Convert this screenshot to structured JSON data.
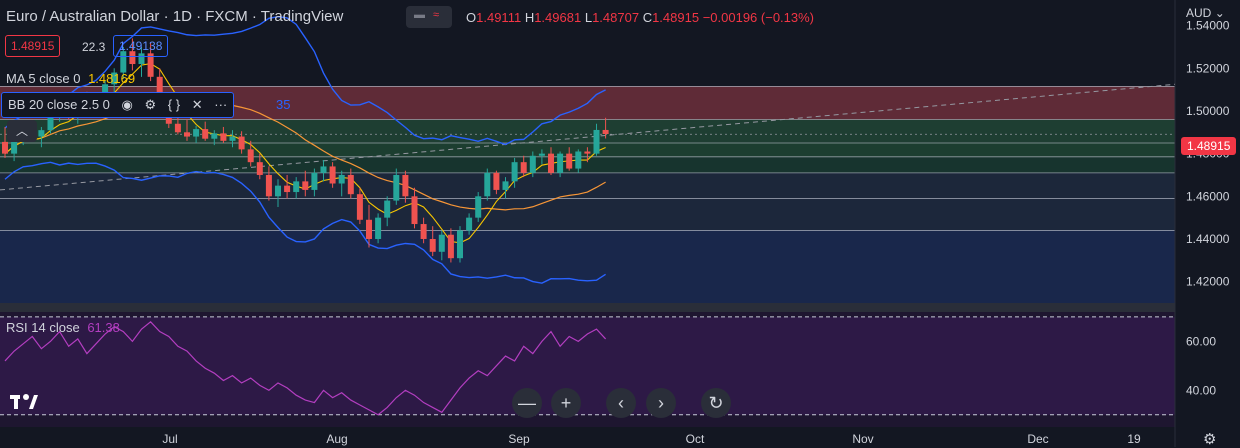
{
  "header": {
    "symbol_title": "Euro / Australian Dollar · 1D · FXCM · TradingView",
    "ohlc": [
      {
        "k": "O",
        "v": "1.49111"
      },
      {
        "k": "H",
        "v": "1.49681"
      },
      {
        "k": "L",
        "v": "1.48707"
      },
      {
        "k": "C",
        "v": "1.48915"
      },
      {
        "k": "",
        "v": "−0.00196 (−0.13%)"
      }
    ]
  },
  "price_boxes": {
    "sell": "1.48915",
    "spread": "22.3",
    "buy": "1.49138"
  },
  "indicators": {
    "ma": {
      "label": "MA 5 close 0",
      "value": "1.48169"
    },
    "bb": {
      "label": "BB 20 close 2.5 0",
      "hidden_value": "35"
    }
  },
  "currency_menu": "AUD",
  "last_price_tag": "1.48915",
  "rsi": {
    "label": "RSI 14 close",
    "value": "61.38"
  },
  "toolbar": {
    "zoom_out": "—",
    "zoom_in": "+",
    "scroll_left": "‹",
    "scroll_right": "›",
    "reset": "↻"
  },
  "colors": {
    "background": "#131722",
    "up": "#26a69a",
    "down": "#ef5350",
    "ma": "#f7c600",
    "ma_line": "#f79637",
    "bb": "#2962ff",
    "rsi": "#b33ec0",
    "accent_blue": "#2962ff"
  },
  "chart_data": {
    "type": "candlestick",
    "x_axis": {
      "tick_labels": [
        "Jul",
        "Aug",
        "Sep",
        "Oct",
        "Nov",
        "Dec",
        "19"
      ]
    },
    "y_axis": {
      "tick_labels": [
        "1.54000",
        "1.52000",
        "1.50000",
        "1.48000",
        "1.46000",
        "1.44000",
        "1.42000"
      ],
      "range": [
        1.41,
        1.552
      ]
    },
    "rsi_axis": {
      "tick_labels": [
        "60.00",
        "40.00"
      ],
      "range": [
        25,
        72
      ]
    },
    "zones": [
      {
        "from": 1.496,
        "to": 1.5115,
        "color": "#6d2f3b"
      },
      {
        "from": 1.485,
        "to": 1.496,
        "color": "#214535"
      },
      {
        "from": 1.4785,
        "to": 1.485,
        "color": "#1f4533"
      },
      {
        "from": 1.471,
        "to": 1.4785,
        "color": "#193a30"
      },
      {
        "from": 1.459,
        "to": 1.471,
        "color": "#1f2a3e"
      },
      {
        "from": 1.444,
        "to": 1.459,
        "color": "#1e2a40"
      },
      {
        "from": 1.41,
        "to": 1.444,
        "color": "#1b2a52"
      }
    ],
    "level_lines": [
      1.5115,
      1.496,
      1.485,
      1.4785,
      1.471,
      1.459,
      1.444
    ],
    "candles": [
      {
        "o": 1.4855,
        "h": 1.4925,
        "l": 1.478,
        "c": 1.48
      },
      {
        "o": 1.48,
        "h": 1.489,
        "l": 1.4765,
        "c": 1.487
      },
      {
        "o": 1.487,
        "h": 1.492,
        "l": 1.484,
        "c": 1.4905
      },
      {
        "o": 1.4905,
        "h": 1.496,
        "l": 1.487,
        "c": 1.488
      },
      {
        "o": 1.488,
        "h": 1.4925,
        "l": 1.483,
        "c": 1.491
      },
      {
        "o": 1.491,
        "h": 1.499,
        "l": 1.4895,
        "c": 1.4975
      },
      {
        "o": 1.4975,
        "h": 1.503,
        "l": 1.495,
        "c": 1.501
      },
      {
        "o": 1.501,
        "h": 1.5045,
        "l": 1.496,
        "c": 1.4975
      },
      {
        "o": 1.4975,
        "h": 1.505,
        "l": 1.494,
        "c": 1.504
      },
      {
        "o": 1.504,
        "h": 1.509,
        "l": 1.5,
        "c": 1.502
      },
      {
        "o": 1.502,
        "h": 1.506,
        "l": 1.499,
        "c": 1.5055
      },
      {
        "o": 1.5055,
        "h": 1.514,
        "l": 1.504,
        "c": 1.5125
      },
      {
        "o": 1.5125,
        "h": 1.52,
        "l": 1.508,
        "c": 1.518
      },
      {
        "o": 1.518,
        "h": 1.53,
        "l": 1.515,
        "c": 1.528
      },
      {
        "o": 1.528,
        "h": 1.534,
        "l": 1.519,
        "c": 1.522
      },
      {
        "o": 1.522,
        "h": 1.53,
        "l": 1.516,
        "c": 1.527
      },
      {
        "o": 1.527,
        "h": 1.532,
        "l": 1.514,
        "c": 1.516
      },
      {
        "o": 1.516,
        "h": 1.52,
        "l": 1.503,
        "c": 1.505
      },
      {
        "o": 1.505,
        "h": 1.508,
        "l": 1.492,
        "c": 1.494
      },
      {
        "o": 1.494,
        "h": 1.499,
        "l": 1.489,
        "c": 1.49
      },
      {
        "o": 1.49,
        "h": 1.496,
        "l": 1.486,
        "c": 1.488
      },
      {
        "o": 1.488,
        "h": 1.493,
        "l": 1.485,
        "c": 1.4915
      },
      {
        "o": 1.4915,
        "h": 1.495,
        "l": 1.486,
        "c": 1.487
      },
      {
        "o": 1.487,
        "h": 1.491,
        "l": 1.484,
        "c": 1.4895
      },
      {
        "o": 1.4895,
        "h": 1.4925,
        "l": 1.485,
        "c": 1.486
      },
      {
        "o": 1.486,
        "h": 1.491,
        "l": 1.483,
        "c": 1.488
      },
      {
        "o": 1.488,
        "h": 1.4905,
        "l": 1.48,
        "c": 1.482
      },
      {
        "o": 1.482,
        "h": 1.486,
        "l": 1.474,
        "c": 1.476
      },
      {
        "o": 1.476,
        "h": 1.48,
        "l": 1.468,
        "c": 1.47
      },
      {
        "o": 1.47,
        "h": 1.474,
        "l": 1.458,
        "c": 1.46
      },
      {
        "o": 1.46,
        "h": 1.468,
        "l": 1.455,
        "c": 1.465
      },
      {
        "o": 1.465,
        "h": 1.47,
        "l": 1.459,
        "c": 1.462
      },
      {
        "o": 1.462,
        "h": 1.469,
        "l": 1.459,
        "c": 1.467
      },
      {
        "o": 1.467,
        "h": 1.472,
        "l": 1.46,
        "c": 1.463
      },
      {
        "o": 1.463,
        "h": 1.473,
        "l": 1.46,
        "c": 1.471
      },
      {
        "o": 1.471,
        "h": 1.477,
        "l": 1.467,
        "c": 1.474
      },
      {
        "o": 1.474,
        "h": 1.476,
        "l": 1.464,
        "c": 1.466
      },
      {
        "o": 1.466,
        "h": 1.472,
        "l": 1.46,
        "c": 1.47
      },
      {
        "o": 1.47,
        "h": 1.473,
        "l": 1.459,
        "c": 1.461
      },
      {
        "o": 1.461,
        "h": 1.464,
        "l": 1.447,
        "c": 1.449
      },
      {
        "o": 1.449,
        "h": 1.456,
        "l": 1.436,
        "c": 1.44
      },
      {
        "o": 1.44,
        "h": 1.452,
        "l": 1.438,
        "c": 1.45
      },
      {
        "o": 1.45,
        "h": 1.46,
        "l": 1.446,
        "c": 1.458
      },
      {
        "o": 1.458,
        "h": 1.473,
        "l": 1.456,
        "c": 1.47
      },
      {
        "o": 1.47,
        "h": 1.472,
        "l": 1.457,
        "c": 1.46
      },
      {
        "o": 1.46,
        "h": 1.464,
        "l": 1.445,
        "c": 1.447
      },
      {
        "o": 1.447,
        "h": 1.45,
        "l": 1.438,
        "c": 1.44
      },
      {
        "o": 1.44,
        "h": 1.446,
        "l": 1.432,
        "c": 1.434
      },
      {
        "o": 1.434,
        "h": 1.444,
        "l": 1.43,
        "c": 1.442
      },
      {
        "o": 1.442,
        "h": 1.445,
        "l": 1.429,
        "c": 1.431
      },
      {
        "o": 1.431,
        "h": 1.446,
        "l": 1.429,
        "c": 1.444
      },
      {
        "o": 1.444,
        "h": 1.452,
        "l": 1.442,
        "c": 1.45
      },
      {
        "o": 1.45,
        "h": 1.462,
        "l": 1.448,
        "c": 1.46
      },
      {
        "o": 1.46,
        "h": 1.473,
        "l": 1.458,
        "c": 1.471
      },
      {
        "o": 1.471,
        "h": 1.472,
        "l": 1.461,
        "c": 1.463
      },
      {
        "o": 1.463,
        "h": 1.469,
        "l": 1.459,
        "c": 1.467
      },
      {
        "o": 1.467,
        "h": 1.478,
        "l": 1.464,
        "c": 1.476
      },
      {
        "o": 1.476,
        "h": 1.479,
        "l": 1.469,
        "c": 1.471
      },
      {
        "o": 1.471,
        "h": 1.481,
        "l": 1.469,
        "c": 1.479
      },
      {
        "o": 1.479,
        "h": 1.482,
        "l": 1.475,
        "c": 1.48
      },
      {
        "o": 1.48,
        "h": 1.483,
        "l": 1.47,
        "c": 1.471
      },
      {
        "o": 1.471,
        "h": 1.481,
        "l": 1.469,
        "c": 1.48
      },
      {
        "o": 1.48,
        "h": 1.483,
        "l": 1.472,
        "c": 1.473
      },
      {
        "o": 1.473,
        "h": 1.482,
        "l": 1.471,
        "c": 1.481
      },
      {
        "o": 1.481,
        "h": 1.483,
        "l": 1.476,
        "c": 1.48
      },
      {
        "o": 1.48,
        "h": 1.494,
        "l": 1.479,
        "c": 1.4911
      },
      {
        "o": 1.4911,
        "h": 1.4968,
        "l": 1.4871,
        "c": 1.4892
      }
    ],
    "rsi_values": [
      52,
      56,
      59,
      62,
      57,
      60,
      64,
      58,
      61,
      55,
      59,
      63,
      66,
      64,
      60,
      65,
      68,
      64,
      62,
      58,
      56,
      52,
      49,
      47,
      44,
      46,
      43,
      45,
      42,
      40,
      43,
      41,
      38,
      36,
      35,
      40,
      37,
      39,
      36,
      34,
      32,
      30,
      33,
      37,
      40,
      38,
      35,
      33,
      31,
      36,
      41,
      45,
      48,
      46,
      50,
      54,
      52,
      58,
      55,
      60,
      64,
      58,
      62,
      60,
      63,
      65,
      61
    ]
  }
}
